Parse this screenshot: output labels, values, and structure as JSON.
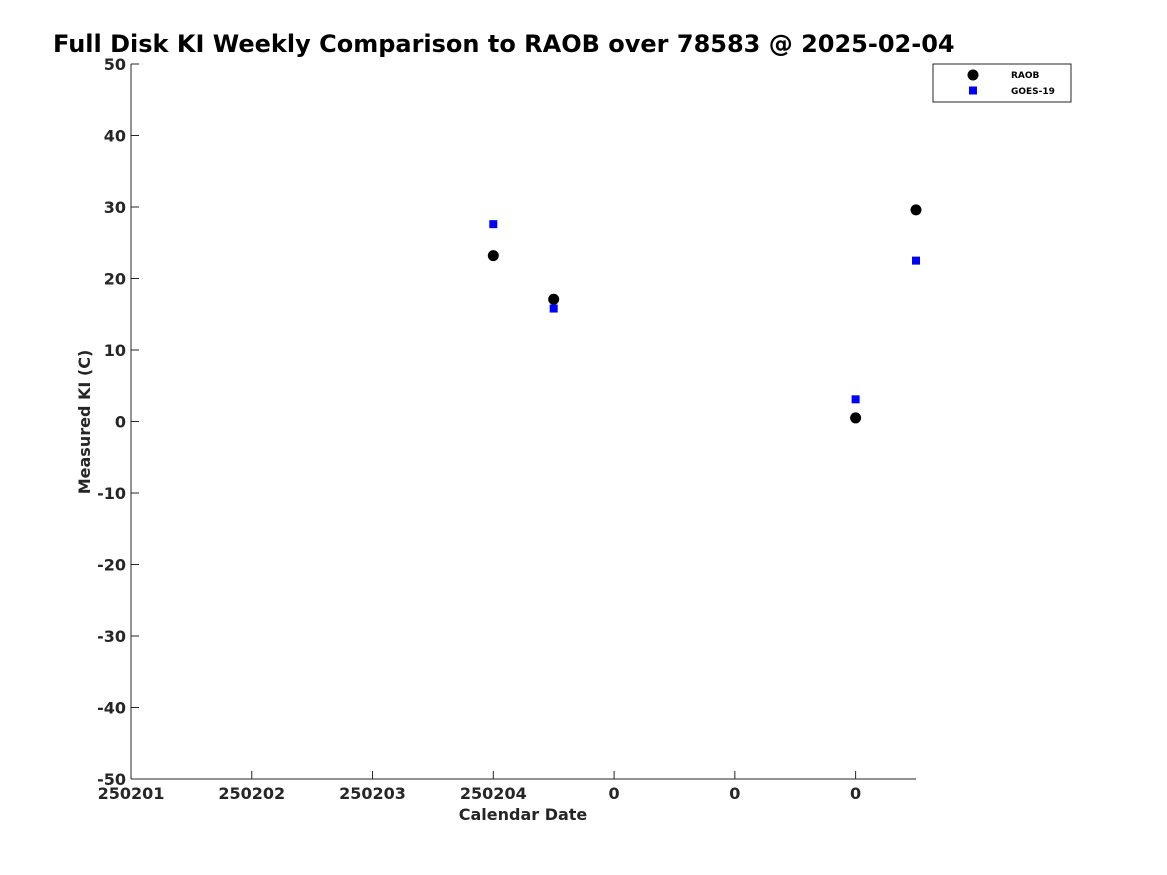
{
  "chart_data": {
    "type": "scatter",
    "title": "Full Disk KI Weekly Comparison to RAOB over 78583 @ 2025-02-04",
    "xlabel": "Calendar Date",
    "ylabel": "Measured KI (C)",
    "xlim": [
      0,
      6.5
    ],
    "ylim": [
      -50,
      50
    ],
    "x_ticks": [
      0,
      1,
      2,
      3,
      4,
      5,
      6
    ],
    "x_tick_labels": [
      "250201",
      "250202",
      "250203",
      "250204",
      "0",
      "0",
      "0"
    ],
    "y_ticks": [
      -50,
      -40,
      -30,
      -20,
      -10,
      0,
      10,
      20,
      30,
      40,
      50
    ],
    "y_tick_labels": [
      "-50",
      "-40",
      "-30",
      "-20",
      "-10",
      "0",
      "10",
      "20",
      "30",
      "40",
      "50"
    ],
    "grid": false,
    "legend_position": "top-right",
    "series": [
      {
        "name": "RAOB",
        "marker": "circle",
        "color": "#000000",
        "x": [
          3.0,
          3.5,
          6.0,
          6.5
        ],
        "y": [
          23.2,
          17.1,
          0.5,
          29.6
        ]
      },
      {
        "name": "GOES-19",
        "marker": "square",
        "color": "#0000ff",
        "x": [
          3.0,
          3.5,
          6.0,
          6.5
        ],
        "y": [
          27.6,
          15.8,
          3.1,
          22.5
        ]
      }
    ]
  }
}
